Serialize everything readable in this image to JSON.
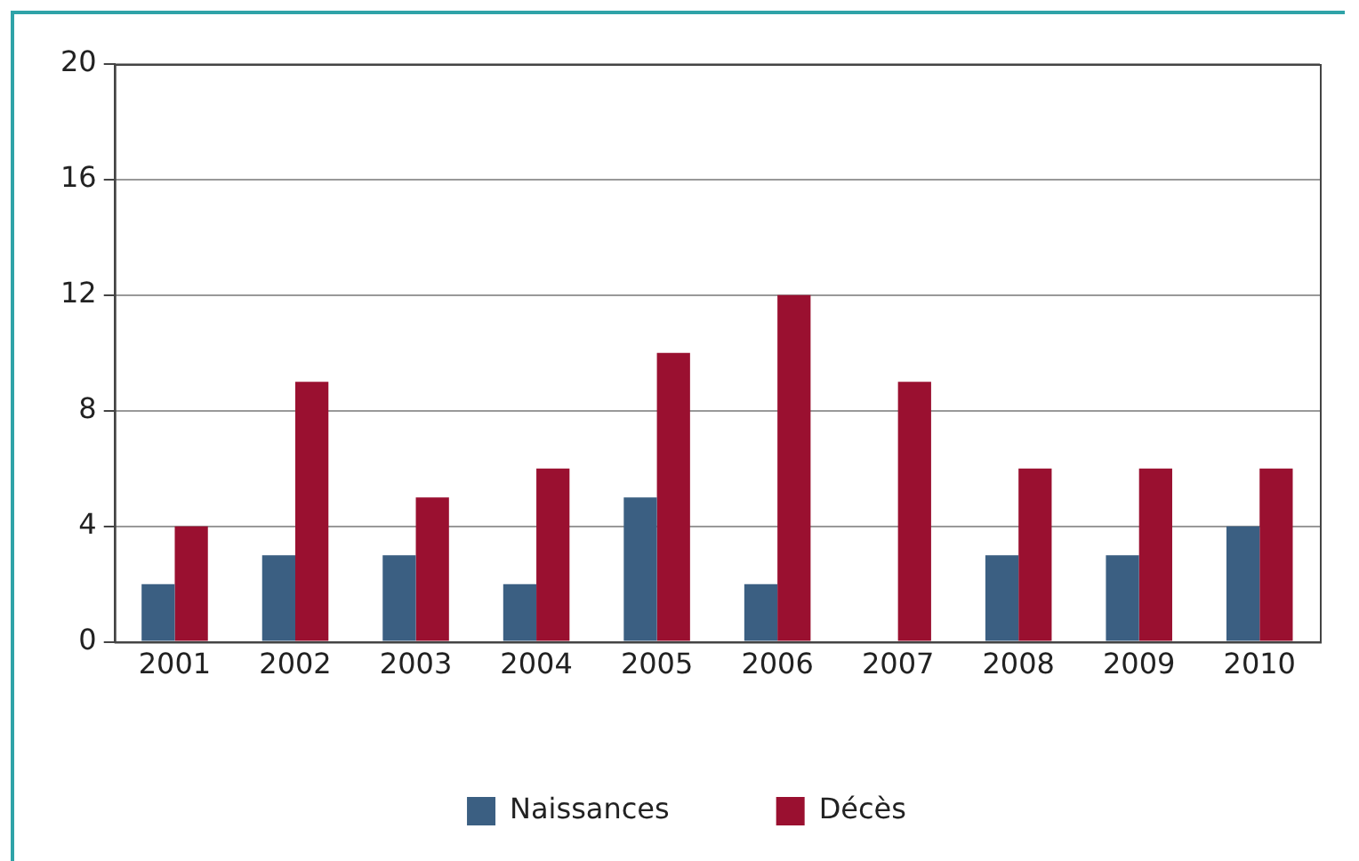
{
  "chart_data": {
    "type": "bar",
    "categories": [
      "2001",
      "2002",
      "2003",
      "2004",
      "2005",
      "2006",
      "2007",
      "2008",
      "2009",
      "2010"
    ],
    "series": [
      {
        "name": "Naissances",
        "color": "#3b5f82",
        "values": [
          2,
          3,
          3,
          2,
          5,
          2,
          0,
          3,
          3,
          4
        ]
      },
      {
        "name": "Décès",
        "color": "#9a1030",
        "values": [
          4,
          9,
          5,
          6,
          10,
          12,
          9,
          6,
          6,
          6
        ]
      }
    ],
    "ylim": [
      0,
      20
    ],
    "yticks": [
      0,
      4,
      8,
      12,
      16,
      20
    ],
    "grid": "y",
    "legend": "bottom"
  }
}
